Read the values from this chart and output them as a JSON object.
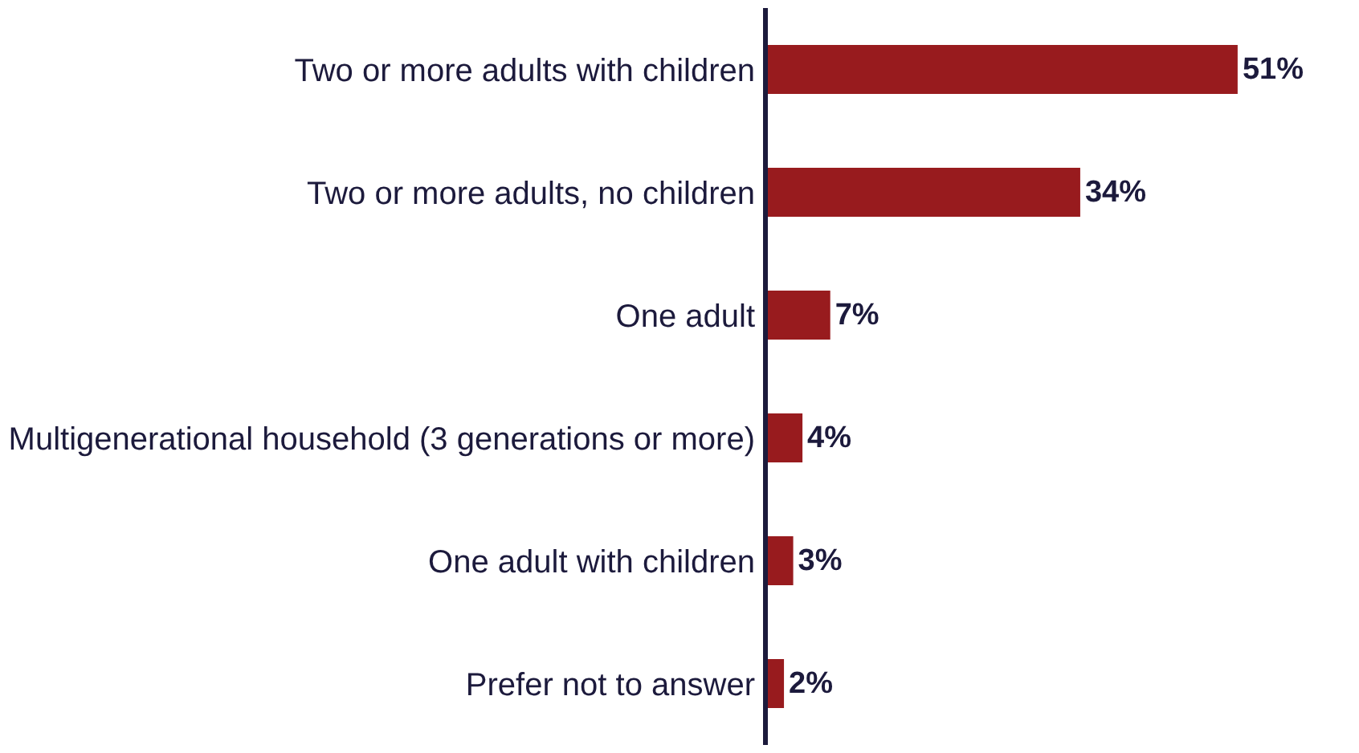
{
  "chart_data": {
    "type": "bar",
    "orientation": "horizontal",
    "categories": [
      "Two or more adults with children",
      "Two or more adults, no children",
      "One adult",
      "Multigenerational household (3 generations or more)",
      "One adult with children",
      "Prefer not to answer"
    ],
    "values": [
      51,
      34,
      7,
      4,
      3,
      2
    ],
    "value_labels": [
      "51%",
      "34%",
      "7%",
      "4%",
      "3%",
      "2%"
    ],
    "color": "#981b1e",
    "tick_labels": "y"
  }
}
